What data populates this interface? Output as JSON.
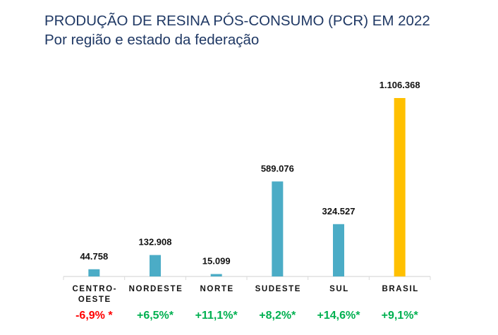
{
  "header": {
    "title": "PRODUÇÃO DE RESINA PÓS-CONSUMO (PCR) EM 2022",
    "subtitle": "Por região e estado da federação"
  },
  "colors": {
    "title": "#1f3864",
    "region_bar": "#4bacc6",
    "total_bar": "#ffc000",
    "negative": "#ff0000",
    "positive": "#00b050",
    "axis": "#d9d9d9"
  },
  "chart_data": {
    "type": "bar",
    "title": "PRODUÇÃO DE RESINA PÓS-CONSUMO (PCR) EM 2022",
    "subtitle": "Por região e estado da federação",
    "xlabel": "",
    "ylabel": "",
    "categories": [
      [
        "CENTRO-",
        "OESTE"
      ],
      [
        "NORDESTE"
      ],
      [
        "NORTE"
      ],
      [
        "SUDESTE"
      ],
      [
        "SUL"
      ],
      [
        "BRASIL"
      ]
    ],
    "values": [
      44758,
      132908,
      15099,
      589076,
      324527,
      1106368
    ],
    "value_labels": [
      "44.758",
      "132.908",
      "15.099",
      "589.076",
      "324.527",
      "1.106.368"
    ],
    "highlight": [
      false,
      false,
      false,
      false,
      false,
      true
    ],
    "changes": [
      "-6,9% *",
      "+6,5%*",
      "+11,1%*",
      "+8,2%*",
      "+14,6%*",
      "+9,1%*"
    ],
    "change_sign": [
      "negative",
      "positive",
      "positive",
      "positive",
      "positive",
      "positive"
    ],
    "ylim": [
      0,
      1106368
    ],
    "grid": false,
    "legend": "none"
  }
}
